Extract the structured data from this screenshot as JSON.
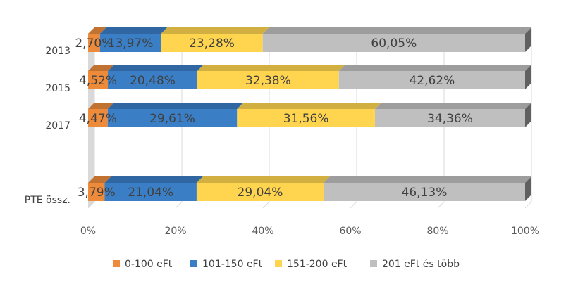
{
  "chart_data": {
    "type": "bar",
    "orientation": "horizontal",
    "stacked": "percent",
    "style": "3d",
    "categories": [
      "2013",
      "2015",
      "2017",
      "PTE össz."
    ],
    "series": [
      {
        "name": "0-100 eFt",
        "values": [
          2.7,
          4.52,
          4.47,
          3.79
        ],
        "labels": [
          "2,70%",
          "4,52%",
          "4,47%",
          "3,79%"
        ],
        "color": "#ED8B3A"
      },
      {
        "name": "101-150 eFt",
        "values": [
          13.97,
          20.48,
          29.61,
          21.04
        ],
        "labels": [
          "13,97%",
          "20,48%",
          "29,61%",
          "21,04%"
        ],
        "color": "#3A7EC6"
      },
      {
        "name": "151-200 eFt",
        "values": [
          23.28,
          32.38,
          31.56,
          29.04
        ],
        "labels": [
          "23,28%",
          "32,38%",
          "31,56%",
          "29,04%"
        ],
        "color": "#FFD54F"
      },
      {
        "name": "201 eFt és több",
        "values": [
          60.05,
          42.62,
          34.36,
          46.13
        ],
        "labels": [
          "60,05%",
          "42,62%",
          "34,36%",
          "46,13%"
        ],
        "color": "#BFBFBF"
      }
    ],
    "xaxis": {
      "ticks": [
        "0%",
        "20%",
        "40%",
        "60%",
        "80%",
        "100%"
      ],
      "range": [
        0,
        100
      ]
    },
    "grid": true,
    "legend_position": "bottom"
  }
}
